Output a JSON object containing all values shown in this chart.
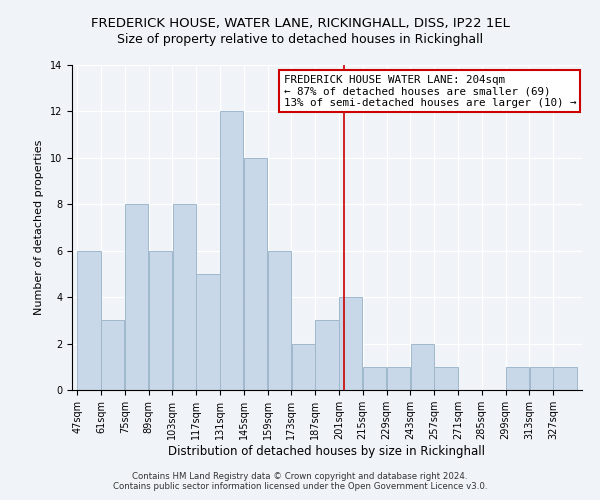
{
  "title": "FREDERICK HOUSE, WATER LANE, RICKINGHALL, DISS, IP22 1EL",
  "subtitle": "Size of property relative to detached houses in Rickinghall",
  "xlabel": "Distribution of detached houses by size in Rickinghall",
  "ylabel": "Number of detached properties",
  "bin_labels": [
    "47sqm",
    "61sqm",
    "75sqm",
    "89sqm",
    "103sqm",
    "117sqm",
    "131sqm",
    "145sqm",
    "159sqm",
    "173sqm",
    "187sqm",
    "201sqm",
    "215sqm",
    "229sqm",
    "243sqm",
    "257sqm",
    "271sqm",
    "285sqm",
    "299sqm",
    "313sqm",
    "327sqm"
  ],
  "bin_edges": [
    47,
    61,
    75,
    89,
    103,
    117,
    131,
    145,
    159,
    173,
    187,
    201,
    215,
    229,
    243,
    257,
    271,
    285,
    299,
    313,
    327,
    341
  ],
  "counts": [
    6,
    3,
    8,
    6,
    8,
    5,
    12,
    10,
    6,
    2,
    3,
    4,
    1,
    1,
    2,
    1,
    0,
    0,
    1,
    1,
    1
  ],
  "bar_color": "#c8d8e8",
  "bar_edge_color": "#a0b8cc",
  "reference_line_x": 204,
  "reference_line_color": "#cc0000",
  "annotation_line1": "FREDERICK HOUSE WATER LANE: 204sqm",
  "annotation_line2": "← 87% of detached houses are smaller (69)",
  "annotation_line3": "13% of semi-detached houses are larger (10) →",
  "annotation_box_edge_color": "#cc0000",
  "ylim": [
    0,
    14
  ],
  "yticks": [
    0,
    2,
    4,
    6,
    8,
    10,
    12,
    14
  ],
  "background_color": "#f0f4f8",
  "footer_line1": "Contains HM Land Registry data © Crown copyright and database right 2024.",
  "footer_line2": "Contains public sector information licensed under the Open Government Licence v3.0.",
  "title_fontsize": 9.5,
  "subtitle_fontsize": 9.0,
  "xlabel_fontsize": 8.5,
  "ylabel_fontsize": 8.0,
  "tick_fontsize": 7.0,
  "annotation_fontsize": 7.8,
  "footer_fontsize": 6.2
}
